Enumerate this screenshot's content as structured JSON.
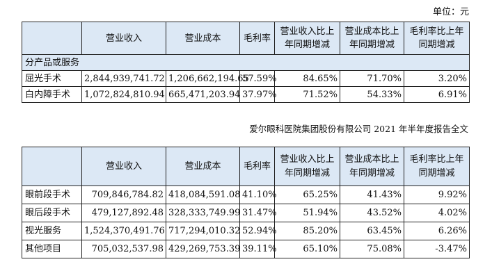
{
  "unit_label": "单位：元",
  "footer_note": "爱尔眼科医院集团股份有限公司 2021 年半年度报告全文",
  "headers": {
    "revenue": "营业收入",
    "cost": "营业成本",
    "margin": "毛利率",
    "revenue_yoy_l1": "营业收入比上",
    "revenue_yoy_l2": "年同期增减",
    "cost_yoy_l1": "营业成本比上",
    "cost_yoy_l2": "年同期增减",
    "margin_yoy_l1": "毛利率比上年",
    "margin_yoy_l2": "同期增减"
  },
  "table1": {
    "category": "分产品或服务",
    "rows": [
      {
        "name": "屈光手术",
        "revenue": "2,844,939,741.72",
        "cost": "1,206,662,194.65",
        "margin": "57.59%",
        "revenue_yoy": "84.65%",
        "cost_yoy": "71.70%",
        "margin_yoy": "3.20%"
      },
      {
        "name": "白内障手术",
        "revenue": "1,072,824,810.94",
        "cost": "665,471,203.94",
        "margin": "37.97%",
        "revenue_yoy": "71.52%",
        "cost_yoy": "54.33%",
        "margin_yoy": "6.91%"
      }
    ]
  },
  "table2": {
    "rows": [
      {
        "name": "眼前段手术",
        "revenue": "709,846,784.82",
        "cost": "418,084,591.08",
        "margin": "41.10%",
        "revenue_yoy": "65.25%",
        "cost_yoy": "41.43%",
        "margin_yoy": "9.92%"
      },
      {
        "name": "眼后段手术",
        "revenue": "479,127,892.48",
        "cost": "328,333,749.99",
        "margin": "31.47%",
        "revenue_yoy": "51.94%",
        "cost_yoy": "43.52%",
        "margin_yoy": "4.02%"
      },
      {
        "name": "视光服务",
        "revenue": "1,524,370,491.76",
        "cost": "717,294,010.32",
        "margin": "52.94%",
        "revenue_yoy": "85.20%",
        "cost_yoy": "63.45%",
        "margin_yoy": "6.26%"
      },
      {
        "name": "其他项目",
        "revenue": "705,032,537.98",
        "cost": "429,269,753.39",
        "margin": "39.11%",
        "revenue_yoy": "65.10%",
        "cost_yoy": "75.08%",
        "margin_yoy": "-3.47%"
      }
    ]
  }
}
